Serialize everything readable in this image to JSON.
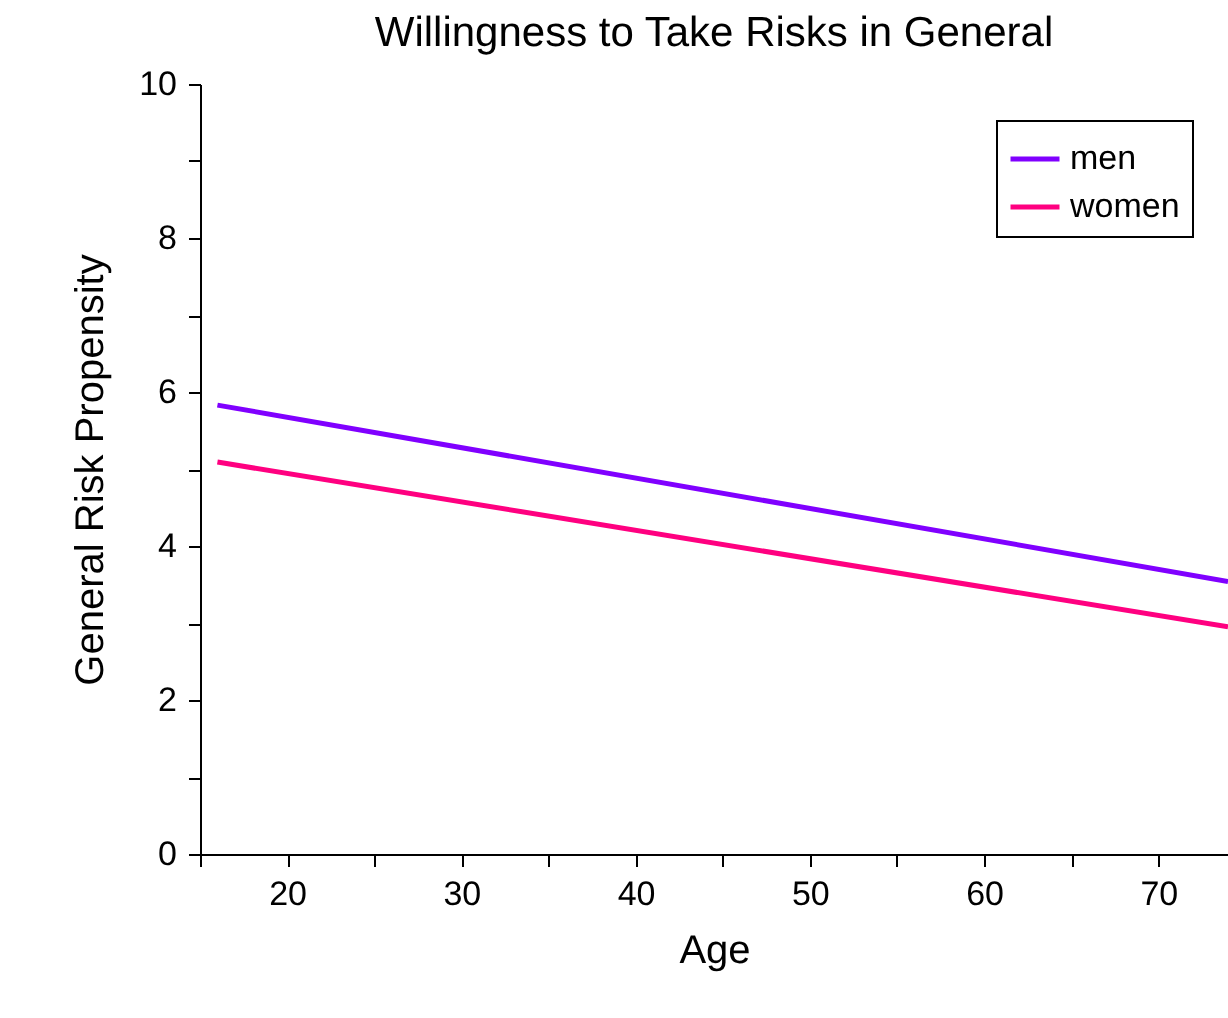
{
  "chart_data": {
    "type": "line",
    "title": "Willingness to Take Risks in General",
    "xlabel": "Age",
    "ylabel": "General Risk Propensity",
    "x": [
      16,
      74
    ],
    "series": [
      {
        "name": "men",
        "color": "#8000ff",
        "values": [
          5.83,
          3.54
        ]
      },
      {
        "name": "women",
        "color": "#ff0080",
        "values": [
          5.09,
          2.95
        ]
      }
    ],
    "xlim": [
      15,
      74
    ],
    "ylim": [
      0,
      10
    ],
    "xticks": [
      {
        "value": 15,
        "label": null
      },
      20,
      {
        "value": 25,
        "label": null
      },
      30,
      {
        "value": 35,
        "label": null
      },
      40,
      {
        "value": 45,
        "label": null
      },
      50,
      {
        "value": 55,
        "label": null
      },
      60,
      {
        "value": 65,
        "label": null
      },
      70
    ],
    "yticks": [
      0,
      {
        "value": 1,
        "label": null
      },
      2,
      {
        "value": 3,
        "label": null
      },
      4,
      {
        "value": 5,
        "label": null
      },
      6,
      {
        "value": 7,
        "label": null
      },
      8,
      {
        "value": 9,
        "label": null
      },
      10
    ],
    "grid": false,
    "legend": "top right",
    "marker": "none",
    "line_style": "solid"
  }
}
